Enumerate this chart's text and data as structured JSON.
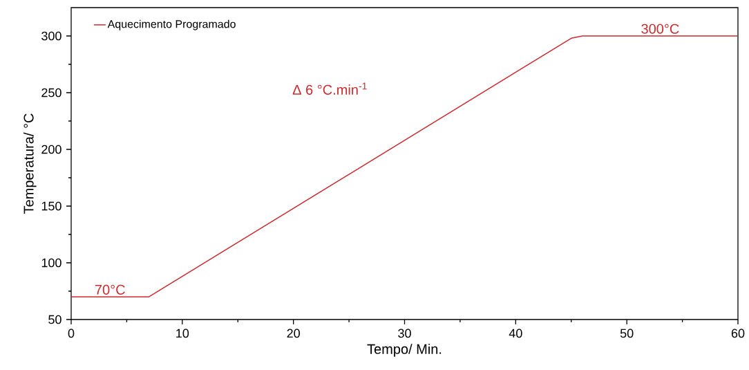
{
  "chart_data": {
    "type": "line",
    "xlabel": "Tempo/ Min.",
    "ylabel": "Temperatura/ °C",
    "series": [
      {
        "name": "Aquecimento Programado",
        "color": "#cc2a2f",
        "x": [
          0,
          7,
          45,
          46,
          60
        ],
        "values": [
          70,
          70,
          298,
          300,
          300
        ]
      }
    ],
    "xlim": [
      0,
      60
    ],
    "ylim": [
      50,
      325
    ],
    "xticks": [
      0,
      10,
      20,
      30,
      40,
      50,
      60
    ],
    "yticks": [
      50,
      100,
      150,
      200,
      250,
      300
    ],
    "annotations": [
      {
        "text": "70°C",
        "x": 3.5,
        "y": 70
      },
      {
        "text": "300°C",
        "x": 53,
        "y": 300
      },
      "Δ 6 °C.min$^{-1}$"
    ],
    "legend": "top left",
    "grid": false,
    "marker": "none",
    "line_style": "solid"
  }
}
